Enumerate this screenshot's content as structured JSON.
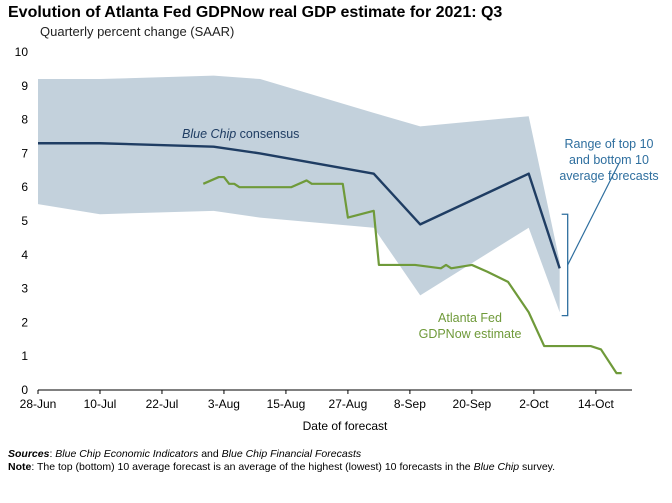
{
  "title": "Evolution of Atlanta Fed GDPNow real GDP estimate for 2021: Q3",
  "subtitle": "Quarterly percent change (SAAR)",
  "colors": {
    "band": "#c3d1dc",
    "blue_chip": "#1f3d63",
    "gdpnow": "#6f9a3a",
    "range_bracket": "#2f6f9f"
  },
  "chart_data": {
    "type": "line",
    "xlabel": "Date of forecast",
    "ylabel": "",
    "ylim": [
      0,
      10
    ],
    "yticks": [
      0,
      1,
      2,
      3,
      4,
      5,
      6,
      7,
      8,
      9,
      10
    ],
    "x_tick_labels": [
      "28-Jun",
      "10-Jul",
      "22-Jul",
      "3-Aug",
      "15-Aug",
      "27-Aug",
      "8-Sep",
      "20-Sep",
      "2-Oct",
      "14-Oct"
    ],
    "x_tick_dates": [
      "2021-06-28",
      "2021-07-10",
      "2021-07-22",
      "2021-08-03",
      "2021-08-15",
      "2021-08-27",
      "2021-09-08",
      "2021-09-20",
      "2021-10-02",
      "2021-10-14"
    ],
    "xlim": [
      "2021-06-28",
      "2021-10-21"
    ],
    "grid": false,
    "band": {
      "name": "Range of top 10 and bottom 10 average forecasts",
      "upper": [
        [
          "2021-06-28",
          9.2
        ],
        [
          "2021-07-10",
          9.2
        ],
        [
          "2021-08-01",
          9.3
        ],
        [
          "2021-08-10",
          9.2
        ],
        [
          "2021-09-01",
          8.2
        ],
        [
          "2021-09-10",
          7.8
        ],
        [
          "2021-10-01",
          8.1
        ],
        [
          "2021-10-07",
          3.8
        ]
      ],
      "lower": [
        [
          "2021-06-28",
          5.5
        ],
        [
          "2021-07-10",
          5.2
        ],
        [
          "2021-08-01",
          5.3
        ],
        [
          "2021-08-10",
          5.1
        ],
        [
          "2021-09-01",
          4.8
        ],
        [
          "2021-09-10",
          2.8
        ],
        [
          "2021-10-01",
          4.8
        ],
        [
          "2021-10-07",
          2.3
        ]
      ]
    },
    "series": [
      {
        "name": "Blue Chip consensus",
        "points": [
          [
            "2021-06-28",
            7.3
          ],
          [
            "2021-07-10",
            7.3
          ],
          [
            "2021-08-01",
            7.2
          ],
          [
            "2021-08-10",
            7.0
          ],
          [
            "2021-09-01",
            6.4
          ],
          [
            "2021-09-10",
            4.9
          ],
          [
            "2021-10-01",
            6.4
          ],
          [
            "2021-10-07",
            3.6
          ]
        ]
      },
      {
        "name": "Atlanta Fed GDPNow estimate",
        "points": [
          [
            "2021-07-30",
            6.1
          ],
          [
            "2021-08-02",
            6.3
          ],
          [
            "2021-08-03",
            6.3
          ],
          [
            "2021-08-04",
            6.1
          ],
          [
            "2021-08-05",
            6.1
          ],
          [
            "2021-08-06",
            6.0
          ],
          [
            "2021-08-16",
            6.0
          ],
          [
            "2021-08-19",
            6.2
          ],
          [
            "2021-08-20",
            6.1
          ],
          [
            "2021-08-26",
            6.1
          ],
          [
            "2021-08-27",
            5.1
          ],
          [
            "2021-09-01",
            5.3
          ],
          [
            "2021-09-02",
            3.7
          ],
          [
            "2021-09-09",
            3.7
          ],
          [
            "2021-09-14",
            3.6
          ],
          [
            "2021-09-15",
            3.7
          ],
          [
            "2021-09-16",
            3.6
          ],
          [
            "2021-09-20",
            3.7
          ],
          [
            "2021-09-23",
            3.5
          ],
          [
            "2021-09-27",
            3.2
          ],
          [
            "2021-10-01",
            2.3
          ],
          [
            "2021-10-04",
            1.3
          ],
          [
            "2021-10-13",
            1.3
          ],
          [
            "2021-10-15",
            1.2
          ],
          [
            "2021-10-18",
            0.5
          ],
          [
            "2021-10-19",
            0.5
          ]
        ]
      }
    ],
    "annotations": {
      "blue_chip_italic": "Blue Chip",
      "blue_chip_rest": " consensus",
      "gdpnow_line1": "Atlanta Fed",
      "gdpnow_line2": "GDPNow estimate",
      "range_line1": "Range of top 10",
      "range_line2": "and bottom 10",
      "range_line3": "average forecasts"
    }
  },
  "footer": {
    "sources_label": "Sources",
    "sources_sep": ": ",
    "sources_part1": "Blue Chip Economic Indicators",
    "sources_and": " and ",
    "sources_part2": "Blue Chip Financial Forecasts",
    "note_label": "Note",
    "note_text": ": The top (bottom) 10 average forecast is an average of the highest (lowest) 10 forecasts in the ",
    "note_italic": "Blue Chip",
    "note_end": " survey."
  }
}
